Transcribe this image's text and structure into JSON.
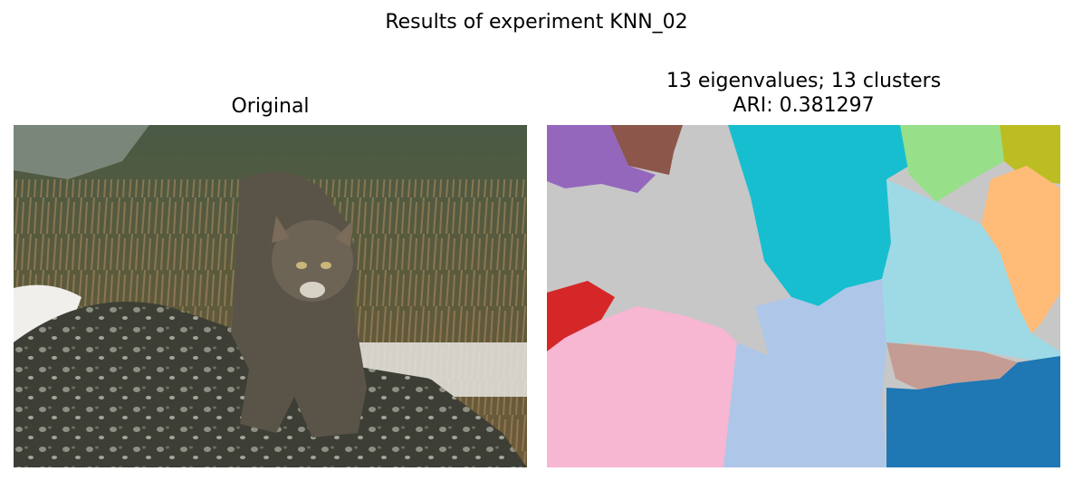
{
  "figure": {
    "suptitle": "Results of experiment KNN_02"
  },
  "left_panel": {
    "title": "Original",
    "image": "bobcat on lichen-covered rock with dry grass background"
  },
  "right_panel": {
    "title_line1": "13 eigenvalues; 13 clusters",
    "title_line2": "ARI: 0.381297",
    "image": "spectral clustering segmentation map"
  },
  "colors": {
    "purple": "#9467bd",
    "brown": "#8c564b",
    "cyan": "#17becf",
    "light_green": "#98df8a",
    "olive": "#bcbd22",
    "orange_light": "#ffbb78",
    "gray_light": "#c7c7c7",
    "light_cyan": "#9edae5",
    "red": "#d62728",
    "pink": "#f7b6d2",
    "light_blue": "#aec7e8",
    "rosy_brown": "#c49c94",
    "blue": "#1f77b4"
  }
}
